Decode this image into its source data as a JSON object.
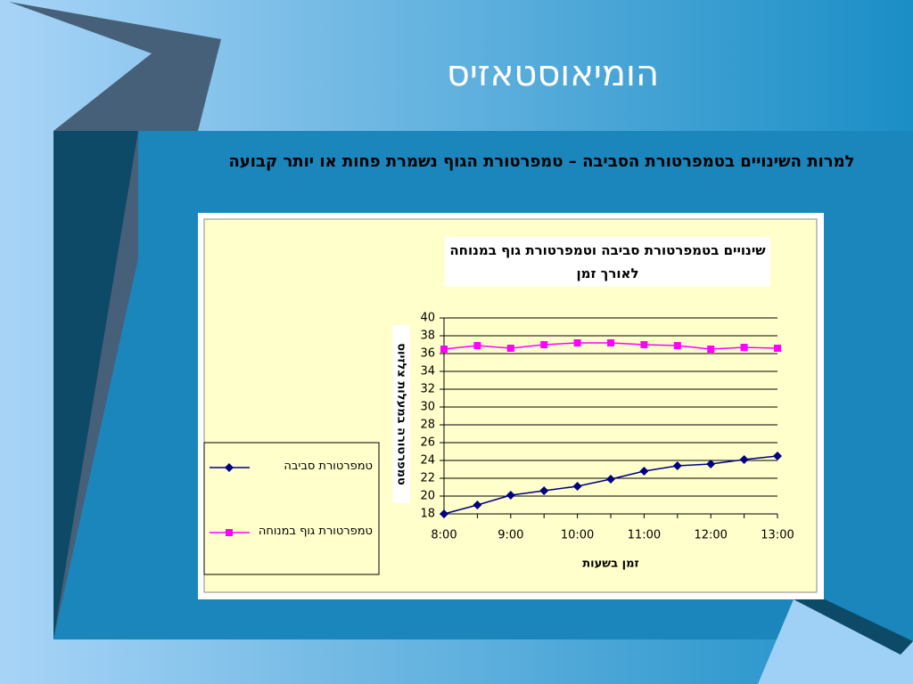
{
  "slide": {
    "title": "הומיאוסטאזיס",
    "text": "למרות השינויים בטמפרטורת הסביבה – טמפרטורת הגוף נשמרת פחות או יותר קבועה"
  },
  "chart_data": {
    "type": "line",
    "title": "שינויים בטמפרטורת סביבה וטמפרטורת גוף במנוחה לאורך זמן",
    "x_label": "זמן בשעות",
    "y_label": "טמפרטורה במעלות צלזיוס",
    "categories": [
      "8:00",
      null,
      "9:00",
      null,
      "10:00",
      null,
      "11:00",
      null,
      "12:00",
      null,
      "13:00"
    ],
    "series": [
      {
        "name": "טמפרטורת סביבה",
        "color": "#000080",
        "marker": "diamond",
        "values": [
          18,
          19,
          20.1,
          20.6,
          21.1,
          21.9,
          22.8,
          23.4,
          23.6,
          24.1,
          24.5
        ]
      },
      {
        "name": "טמפרטורת גוף במנוחה",
        "color": "#ff00ff",
        "marker": "square",
        "values": [
          36.5,
          36.9,
          36.6,
          37,
          37.2,
          37.2,
          37,
          36.9,
          36.5,
          36.7,
          36.6
        ]
      }
    ],
    "ylim": [
      18,
      40
    ],
    "yticks": [
      18,
      20,
      22,
      24,
      26,
      28,
      30,
      32,
      34,
      36,
      38,
      40
    ],
    "grid": true,
    "legend": "left"
  }
}
